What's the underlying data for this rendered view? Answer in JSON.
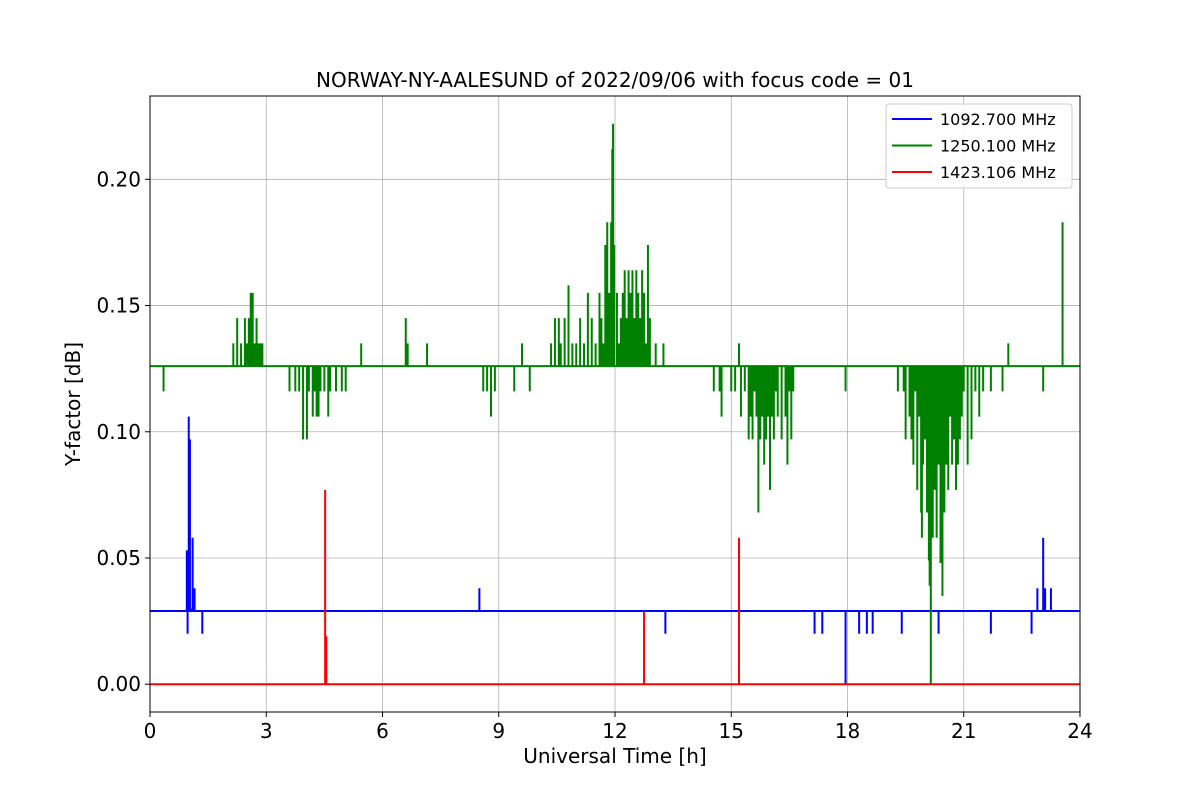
{
  "chart_data": {
    "type": "line",
    "title": "NORWAY-NY-AALESUND of 2022/09/06 with focus code = 01",
    "xlabel": "Universal Time [h]",
    "ylabel": "Y-factor [dB]",
    "xlim": [
      0,
      24
    ],
    "ylim": [
      -0.011,
      0.233
    ],
    "xticks": [
      0,
      3,
      6,
      9,
      12,
      15,
      18,
      21,
      24
    ],
    "xtick_labels": [
      "0",
      "3",
      "6",
      "9",
      "12",
      "15",
      "18",
      "21",
      "24"
    ],
    "yticks": [
      0.0,
      0.05,
      0.1,
      0.15,
      0.2
    ],
    "ytick_labels": [
      "0.00",
      "0.05",
      "0.10",
      "0.15",
      "0.20"
    ],
    "grid": true,
    "legend_position": "top-right",
    "series": [
      {
        "name": "1092.700 MHz",
        "color": "#0000ff",
        "baseline": 0.029,
        "spikes": [
          [
            0.95,
            0.053
          ],
          [
            0.97,
            0.02
          ],
          [
            1.0,
            0.106
          ],
          [
            1.03,
            0.097
          ],
          [
            1.05,
            0.03
          ],
          [
            1.1,
            0.058
          ],
          [
            1.15,
            0.038
          ],
          [
            1.35,
            0.02
          ],
          [
            8.5,
            0.038
          ],
          [
            13.3,
            0.02
          ],
          [
            17.15,
            0.02
          ],
          [
            17.35,
            0.02
          ],
          [
            17.95,
            0.0
          ],
          [
            18.3,
            0.02
          ],
          [
            18.5,
            0.02
          ],
          [
            18.65,
            0.02
          ],
          [
            19.4,
            0.02
          ],
          [
            20.35,
            0.02
          ],
          [
            21.7,
            0.02
          ],
          [
            22.75,
            0.02
          ],
          [
            22.9,
            0.038
          ],
          [
            23.05,
            0.058
          ],
          [
            23.1,
            0.038
          ],
          [
            23.25,
            0.038
          ]
        ]
      },
      {
        "name": "1250.100 MHz",
        "color": "#008000",
        "baseline": 0.126,
        "spikes": [
          [
            0.35,
            0.116
          ],
          [
            2.15,
            0.135
          ],
          [
            2.25,
            0.145
          ],
          [
            2.35,
            0.135
          ],
          [
            2.45,
            0.145
          ],
          [
            2.5,
            0.135
          ],
          [
            2.55,
            0.145
          ],
          [
            2.6,
            0.155
          ],
          [
            2.65,
            0.155
          ],
          [
            2.7,
            0.135
          ],
          [
            2.75,
            0.145
          ],
          [
            2.8,
            0.135
          ],
          [
            2.85,
            0.135
          ],
          [
            2.9,
            0.135
          ],
          [
            3.6,
            0.116
          ],
          [
            3.75,
            0.116
          ],
          [
            3.85,
            0.116
          ],
          [
            3.95,
            0.097
          ],
          [
            4.05,
            0.097
          ],
          [
            4.1,
            0.116
          ],
          [
            4.2,
            0.106
          ],
          [
            4.25,
            0.116
          ],
          [
            4.3,
            0.106
          ],
          [
            4.35,
            0.106
          ],
          [
            4.4,
            0.116
          ],
          [
            4.5,
            0.116
          ],
          [
            4.6,
            0.106
          ],
          [
            4.65,
            0.116
          ],
          [
            4.8,
            0.116
          ],
          [
            4.95,
            0.116
          ],
          [
            5.05,
            0.116
          ],
          [
            5.45,
            0.135
          ],
          [
            6.6,
            0.145
          ],
          [
            6.65,
            0.135
          ],
          [
            7.15,
            0.135
          ],
          [
            8.6,
            0.116
          ],
          [
            8.7,
            0.116
          ],
          [
            8.8,
            0.106
          ],
          [
            8.9,
            0.116
          ],
          [
            9.4,
            0.116
          ],
          [
            9.6,
            0.135
          ],
          [
            9.8,
            0.116
          ],
          [
            10.35,
            0.135
          ],
          [
            10.45,
            0.145
          ],
          [
            10.55,
            0.145
          ],
          [
            10.6,
            0.135
          ],
          [
            10.7,
            0.145
          ],
          [
            10.8,
            0.158
          ],
          [
            10.9,
            0.135
          ],
          [
            11.0,
            0.135
          ],
          [
            11.1,
            0.145
          ],
          [
            11.2,
            0.135
          ],
          [
            11.3,
            0.155
          ],
          [
            11.4,
            0.145
          ],
          [
            11.5,
            0.135
          ],
          [
            11.6,
            0.155
          ],
          [
            11.65,
            0.145
          ],
          [
            11.7,
            0.135
          ],
          [
            11.75,
            0.174
          ],
          [
            11.8,
            0.183
          ],
          [
            11.85,
            0.155
          ],
          [
            11.9,
            0.183
          ],
          [
            11.93,
            0.212
          ],
          [
            11.95,
            0.222
          ],
          [
            11.98,
            0.174
          ],
          [
            12.05,
            0.155
          ],
          [
            12.1,
            0.135
          ],
          [
            12.15,
            0.145
          ],
          [
            12.2,
            0.155
          ],
          [
            12.25,
            0.164
          ],
          [
            12.3,
            0.145
          ],
          [
            12.35,
            0.164
          ],
          [
            12.4,
            0.155
          ],
          [
            12.45,
            0.164
          ],
          [
            12.5,
            0.145
          ],
          [
            12.55,
            0.164
          ],
          [
            12.6,
            0.155
          ],
          [
            12.65,
            0.145
          ],
          [
            12.7,
            0.164
          ],
          [
            12.75,
            0.155
          ],
          [
            12.8,
            0.135
          ],
          [
            12.85,
            0.174
          ],
          [
            12.9,
            0.145
          ],
          [
            13.05,
            0.135
          ],
          [
            13.25,
            0.135
          ],
          [
            14.55,
            0.116
          ],
          [
            14.7,
            0.116
          ],
          [
            14.75,
            0.106
          ],
          [
            15.0,
            0.116
          ],
          [
            15.1,
            0.116
          ],
          [
            15.2,
            0.135
          ],
          [
            15.25,
            0.106
          ],
          [
            15.35,
            0.116
          ],
          [
            15.45,
            0.097
          ],
          [
            15.5,
            0.106
          ],
          [
            15.55,
            0.097
          ],
          [
            15.6,
            0.116
          ],
          [
            15.65,
            0.106
          ],
          [
            15.7,
            0.068
          ],
          [
            15.75,
            0.097
          ],
          [
            15.8,
            0.106
          ],
          [
            15.85,
            0.087
          ],
          [
            15.9,
            0.097
          ],
          [
            15.95,
            0.106
          ],
          [
            16.0,
            0.077
          ],
          [
            16.05,
            0.106
          ],
          [
            16.1,
            0.097
          ],
          [
            16.15,
            0.116
          ],
          [
            16.2,
            0.106
          ],
          [
            16.3,
            0.097
          ],
          [
            16.4,
            0.106
          ],
          [
            16.45,
            0.087
          ],
          [
            16.5,
            0.116
          ],
          [
            16.55,
            0.097
          ],
          [
            16.6,
            0.116
          ],
          [
            17.95,
            0.116
          ],
          [
            19.3,
            0.116
          ],
          [
            19.45,
            0.116
          ],
          [
            19.5,
            0.097
          ],
          [
            19.6,
            0.106
          ],
          [
            19.65,
            0.097
          ],
          [
            19.7,
            0.087
          ],
          [
            19.75,
            0.116
          ],
          [
            19.8,
            0.077
          ],
          [
            19.85,
            0.106
          ],
          [
            19.9,
            0.068
          ],
          [
            19.92,
            0.058
          ],
          [
            19.95,
            0.087
          ],
          [
            20.0,
            0.097
          ],
          [
            20.05,
            0.068
          ],
          [
            20.1,
            0.049
          ],
          [
            20.12,
            0.039
          ],
          [
            20.15,
            0.0
          ],
          [
            20.2,
            0.058
          ],
          [
            20.25,
            0.077
          ],
          [
            20.3,
            0.058
          ],
          [
            20.35,
            0.087
          ],
          [
            20.4,
            0.048
          ],
          [
            20.45,
            0.035
          ],
          [
            20.5,
            0.068
          ],
          [
            20.55,
            0.087
          ],
          [
            20.6,
            0.077
          ],
          [
            20.65,
            0.106
          ],
          [
            20.7,
            0.087
          ],
          [
            20.75,
            0.097
          ],
          [
            20.8,
            0.077
          ],
          [
            20.85,
            0.087
          ],
          [
            20.9,
            0.097
          ],
          [
            20.95,
            0.106
          ],
          [
            21.0,
            0.116
          ],
          [
            21.1,
            0.087
          ],
          [
            21.2,
            0.097
          ],
          [
            21.3,
            0.116
          ],
          [
            21.4,
            0.106
          ],
          [
            21.5,
            0.116
          ],
          [
            21.7,
            0.116
          ],
          [
            22.0,
            0.116
          ],
          [
            22.15,
            0.135
          ],
          [
            23.05,
            0.116
          ],
          [
            23.55,
            0.183
          ]
        ]
      },
      {
        "name": "1423.106 MHz",
        "color": "#ff0000",
        "baseline": 0.0,
        "spikes": [
          [
            4.52,
            0.077
          ],
          [
            4.55,
            0.019
          ],
          [
            12.75,
            0.029
          ],
          [
            15.2,
            0.058
          ]
        ]
      }
    ]
  }
}
